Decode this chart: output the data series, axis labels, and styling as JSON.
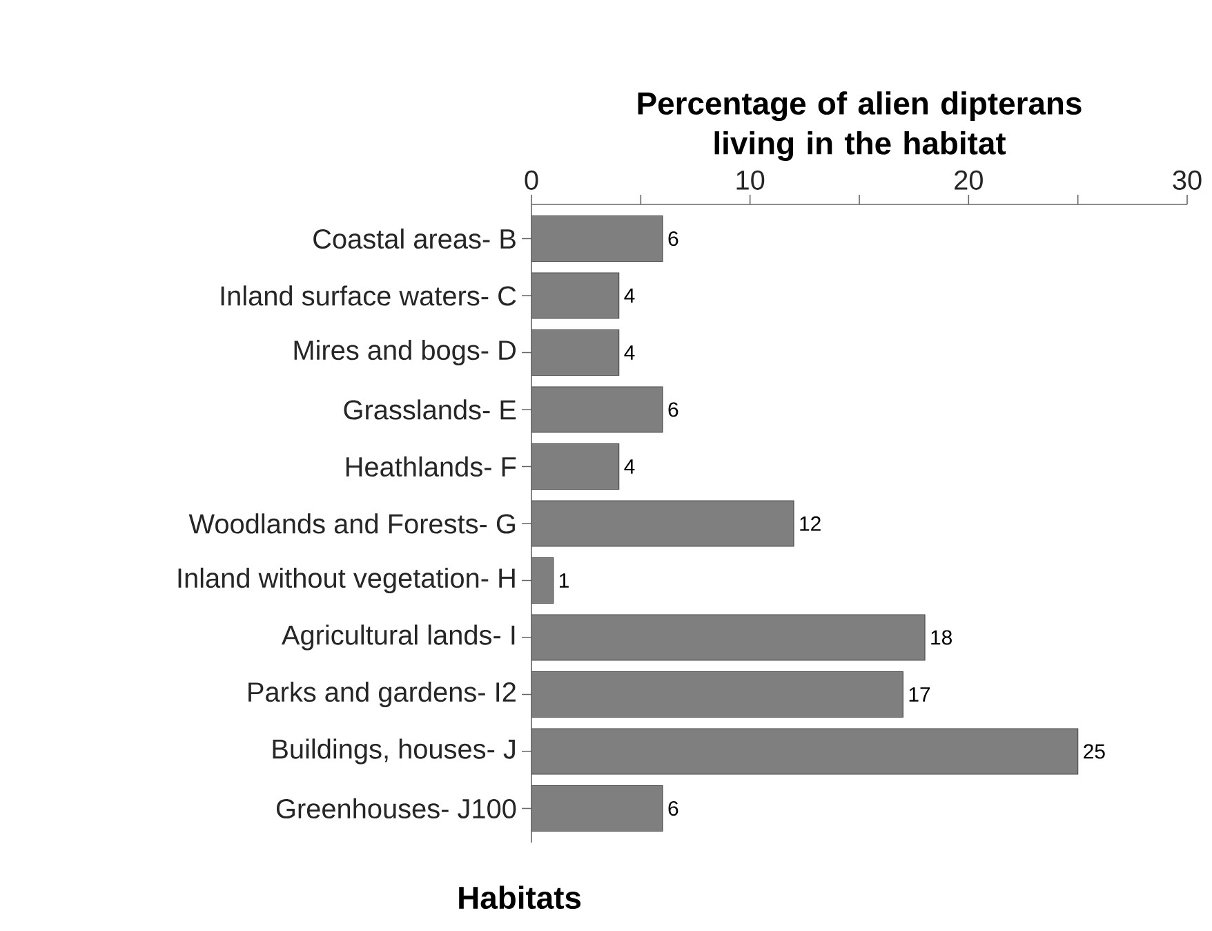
{
  "chart_data": {
    "type": "bar",
    "orientation": "horizontal",
    "xlabel": "Percentage of alien dipterans living in the habitat",
    "ylabel": "Habitats",
    "categories": [
      "Coastal areas- B",
      "Inland surface waters- C",
      "Mires and bogs- D",
      "Grasslands- E",
      "Heathlands- F",
      "Woodlands and Forests- G",
      "Inland without vegetation- H",
      "Agricultural lands- I",
      "Parks and gardens- I2",
      "Buildings, houses- J",
      "Greenhouses- J100"
    ],
    "values": [
      6,
      4,
      4,
      6,
      4,
      12,
      1,
      18,
      17,
      25,
      6
    ],
    "color": "#7f7f7f",
    "xlim": [
      0,
      30
    ],
    "xticks": [
      0,
      {
        "value": 5,
        "label": null
      },
      10,
      {
        "value": 15,
        "label": null
      },
      20,
      {
        "value": 25,
        "label": null
      },
      30
    ],
    "data_labels": true
  }
}
